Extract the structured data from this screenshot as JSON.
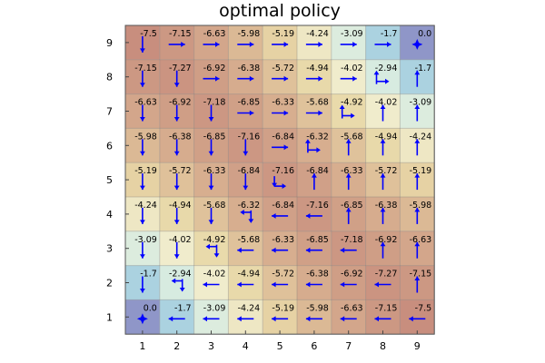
{
  "chart_data": {
    "type": "heatmap",
    "title": "optimal policy",
    "xlabel": "",
    "ylabel": "",
    "x_ticks": [
      "1",
      "2",
      "3",
      "4",
      "5",
      "6",
      "7",
      "8",
      "9"
    ],
    "y_ticks": [
      "1",
      "2",
      "3",
      "4",
      "5",
      "6",
      "7",
      "8",
      "9"
    ],
    "xlim": [
      0.5,
      9.5
    ],
    "ylim": [
      0.5,
      9.5
    ],
    "grid": true,
    "goal_marker_color": "#0000ff",
    "arrow_color": "#0000ff",
    "colormap": [
      "#8f96c8",
      "#9ac6dc",
      "#c8e8e6",
      "#f2f1d6",
      "#e8d8a8",
      "#d8b090",
      "#c88e7e"
    ],
    "rows": [
      {
        "y": 9,
        "values": [
          "-7.5",
          "-7.15",
          "-6.63",
          "-5.98",
          "-5.19",
          "-4.24",
          "-3.09",
          "-1.7",
          "0.0"
        ],
        "actions": [
          "down",
          "right",
          "right",
          "right",
          "right",
          "right",
          "right",
          "right",
          "goal"
        ]
      },
      {
        "y": 8,
        "values": [
          "-7.15",
          "-7.27",
          "-6.92",
          "-6.38",
          "-5.72",
          "-4.94",
          "-4.02",
          "-2.94",
          "-1.7"
        ],
        "actions": [
          "down",
          "down",
          "right",
          "right",
          "right",
          "right",
          "right",
          "right-up",
          "up"
        ]
      },
      {
        "y": 7,
        "values": [
          "-6.63",
          "-6.92",
          "-7.18",
          "-6.85",
          "-6.33",
          "-5.68",
          "-4.92",
          "-4.02",
          "-3.09"
        ],
        "actions": [
          "down",
          "down",
          "down",
          "right",
          "right",
          "right",
          "right-up",
          "up",
          "up"
        ]
      },
      {
        "y": 6,
        "values": [
          "-5.98",
          "-6.38",
          "-6.85",
          "-7.16",
          "-6.84",
          "-6.32",
          "-5.68",
          "-4.94",
          "-4.24"
        ],
        "actions": [
          "down",
          "down",
          "down",
          "down",
          "right",
          "right-up",
          "up",
          "up",
          "up"
        ]
      },
      {
        "y": 5,
        "values": [
          "-5.19",
          "-5.72",
          "-6.33",
          "-6.84",
          "-7.16",
          "-6.84",
          "-6.33",
          "-5.72",
          "-5.19"
        ],
        "actions": [
          "down",
          "down",
          "down",
          "down",
          "down-right",
          "up",
          "up",
          "up",
          "up"
        ]
      },
      {
        "y": 4,
        "values": [
          "-4.24",
          "-4.94",
          "-5.68",
          "-6.32",
          "-6.84",
          "-7.16",
          "-6.85",
          "-6.38",
          "-5.98"
        ],
        "actions": [
          "down",
          "down",
          "down",
          "left-down",
          "left",
          "left",
          "up",
          "up",
          "up"
        ]
      },
      {
        "y": 3,
        "values": [
          "-3.09",
          "-4.02",
          "-4.92",
          "-5.68",
          "-6.33",
          "-6.85",
          "-7.18",
          "-6.92",
          "-6.63"
        ],
        "actions": [
          "down",
          "down",
          "left-down",
          "left",
          "left",
          "left",
          "left",
          "up",
          "up"
        ]
      },
      {
        "y": 2,
        "values": [
          "-1.7",
          "-2.94",
          "-4.02",
          "-4.94",
          "-5.72",
          "-6.38",
          "-6.92",
          "-7.27",
          "-7.15"
        ],
        "actions": [
          "down",
          "left-down",
          "left",
          "left",
          "left",
          "left",
          "left",
          "left",
          "up"
        ]
      },
      {
        "y": 1,
        "values": [
          "0.0",
          "-1.7",
          "-3.09",
          "-4.24",
          "-5.19",
          "-5.98",
          "-6.63",
          "-7.15",
          "-7.5"
        ],
        "actions": [
          "goal",
          "left",
          "left",
          "left",
          "left",
          "left",
          "left",
          "left",
          "left"
        ]
      }
    ]
  }
}
